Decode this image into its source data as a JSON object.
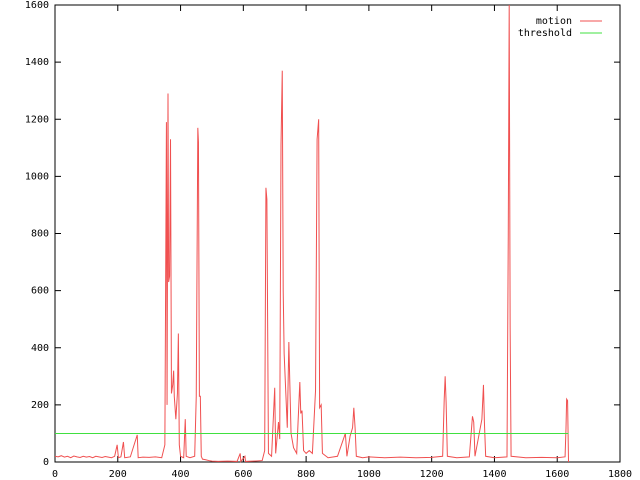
{
  "chart_data": {
    "type": "line",
    "xlim": [
      0,
      1800
    ],
    "xticks": [
      0,
      200,
      400,
      600,
      800,
      1000,
      1200,
      1400,
      1600,
      1800
    ],
    "ylim": [
      0,
      1600
    ],
    "yticks": [
      0,
      200,
      400,
      600,
      800,
      1000,
      1200,
      1400,
      1600
    ],
    "grid": false,
    "legend": "top-right",
    "series": [
      {
        "name": "motion",
        "color": "#f05050",
        "x": [
          0,
          10,
          20,
          30,
          40,
          50,
          60,
          70,
          80,
          90,
          100,
          110,
          120,
          130,
          140,
          150,
          160,
          170,
          180,
          190,
          198,
          202,
          210,
          218,
          222,
          240,
          262,
          265,
          280,
          300,
          320,
          340,
          350,
          355,
          357,
          360,
          362,
          365,
          368,
          371,
          375,
          378,
          380,
          385,
          390,
          393,
          396,
          400,
          410,
          415,
          418,
          430,
          445,
          450,
          455,
          457,
          460,
          463,
          466,
          470,
          480,
          490,
          500,
          520,
          550,
          580,
          590,
          592,
          605,
          607,
          630,
          660,
          668,
          672,
          675,
          680,
          690,
          700,
          703,
          712,
          716,
          720,
          724,
          727,
          730,
          735,
          740,
          745,
          748,
          752,
          760,
          770,
          780,
          783,
          787,
          792,
          800,
          810,
          820,
          830,
          835,
          840,
          843,
          848,
          852,
          870,
          900,
          925,
          930,
          940,
          948,
          952,
          956,
          960,
          980,
          1000,
          1050,
          1100,
          1150,
          1200,
          1235,
          1240,
          1243,
          1246,
          1250,
          1280,
          1320,
          1330,
          1334,
          1338,
          1360,
          1365,
          1368,
          1372,
          1400,
          1440,
          1444,
          1447,
          1450,
          1453,
          1500,
          1550,
          1600,
          1625,
          1628,
          1630,
          1633,
          1636
        ],
        "values": [
          20,
          18,
          22,
          17,
          20,
          15,
          21,
          18,
          16,
          20,
          17,
          19,
          15,
          20,
          18,
          16,
          19,
          17,
          15,
          20,
          60,
          15,
          18,
          70,
          15,
          18,
          95,
          15,
          17,
          16,
          18,
          15,
          60,
          1190,
          200,
          1290,
          630,
          650,
          1130,
          240,
          270,
          320,
          230,
          150,
          240,
          450,
          60,
          20,
          15,
          150,
          20,
          15,
          20,
          230,
          1170,
          1120,
          230,
          230,
          20,
          10,
          8,
          5,
          3,
          2,
          3,
          2,
          30,
          2,
          20,
          2,
          3,
          5,
          40,
          960,
          920,
          30,
          20,
          260,
          30,
          140,
          80,
          1110,
          1370,
          600,
          380,
          250,
          120,
          420,
          280,
          100,
          50,
          30,
          280,
          170,
          180,
          40,
          30,
          40,
          30,
          250,
          1130,
          1200,
          190,
          200,
          30,
          15,
          20,
          100,
          20,
          90,
          120,
          190,
          120,
          20,
          15,
          18,
          15,
          17,
          15,
          16,
          20,
          220,
          300,
          210,
          20,
          15,
          18,
          160,
          140,
          20,
          150,
          270,
          140,
          20,
          15,
          18,
          790,
          1600,
          470,
          20,
          15,
          16,
          15,
          18,
          120,
          220,
          215,
          0
        ]
      },
      {
        "name": "threshold",
        "color": "#40e040",
        "x": [
          0,
          1636
        ],
        "values": [
          100,
          100
        ]
      }
    ]
  }
}
